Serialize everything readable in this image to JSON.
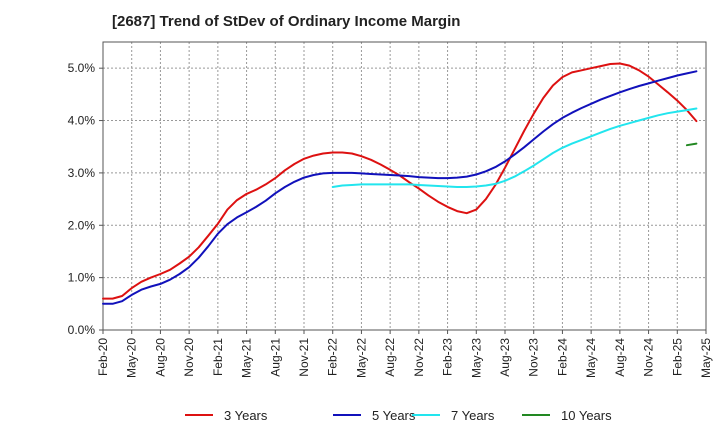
{
  "chart_data": {
    "type": "line",
    "title": "[2687]  Trend of StDev of Ordinary Income Margin",
    "xlabel": "",
    "ylabel": "",
    "x_ticks": [
      "Feb-20",
      "May-20",
      "Aug-20",
      "Nov-20",
      "Feb-21",
      "May-21",
      "Aug-21",
      "Nov-21",
      "Feb-22",
      "May-22",
      "Aug-22",
      "Nov-22",
      "Feb-23",
      "May-23",
      "Aug-23",
      "Nov-23",
      "Feb-24",
      "May-24",
      "Aug-24",
      "Nov-24",
      "Feb-25",
      "May-25"
    ],
    "y_ticks": [
      "0.0%",
      "1.0%",
      "2.0%",
      "3.0%",
      "4.0%",
      "5.0%"
    ],
    "ylim": [
      0,
      5.5
    ],
    "grid": true,
    "legend_position": "bottom",
    "series": [
      {
        "name": "3 Years",
        "color": "#dd1111",
        "values": [
          [
            0,
            0.6
          ],
          [
            1,
            0.6
          ],
          [
            2,
            0.65
          ],
          [
            3,
            0.8
          ],
          [
            4,
            0.92
          ],
          [
            5,
            1.0
          ],
          [
            6,
            1.07
          ],
          [
            7,
            1.15
          ],
          [
            8,
            1.27
          ],
          [
            9,
            1.4
          ],
          [
            10,
            1.58
          ],
          [
            11,
            1.8
          ],
          [
            12,
            2.03
          ],
          [
            13,
            2.3
          ],
          [
            14,
            2.48
          ],
          [
            15,
            2.6
          ],
          [
            16,
            2.68
          ],
          [
            17,
            2.78
          ],
          [
            18,
            2.9
          ],
          [
            19,
            3.05
          ],
          [
            20,
            3.17
          ],
          [
            21,
            3.27
          ],
          [
            22,
            3.33
          ],
          [
            23,
            3.37
          ],
          [
            24,
            3.39
          ],
          [
            25,
            3.39
          ],
          [
            26,
            3.37
          ],
          [
            27,
            3.32
          ],
          [
            28,
            3.25
          ],
          [
            29,
            3.16
          ],
          [
            30,
            3.06
          ],
          [
            31,
            2.95
          ],
          [
            32,
            2.82
          ],
          [
            33,
            2.7
          ],
          [
            34,
            2.57
          ],
          [
            35,
            2.45
          ],
          [
            36,
            2.35
          ],
          [
            37,
            2.27
          ],
          [
            38,
            2.23
          ],
          [
            39,
            2.3
          ],
          [
            40,
            2.5
          ],
          [
            41,
            2.77
          ],
          [
            42,
            3.1
          ],
          [
            43,
            3.45
          ],
          [
            44,
            3.8
          ],
          [
            45,
            4.13
          ],
          [
            46,
            4.43
          ],
          [
            47,
            4.67
          ],
          [
            48,
            4.83
          ],
          [
            49,
            4.92
          ],
          [
            50,
            4.96
          ],
          [
            51,
            5.0
          ],
          [
            52,
            5.04
          ],
          [
            53,
            5.08
          ],
          [
            54,
            5.09
          ],
          [
            55,
            5.05
          ],
          [
            56,
            4.96
          ],
          [
            57,
            4.84
          ],
          [
            58,
            4.69
          ],
          [
            59,
            4.54
          ],
          [
            60,
            4.38
          ],
          [
            61,
            4.2
          ],
          [
            62,
            3.99
          ]
        ]
      },
      {
        "name": "5 Years",
        "color": "#1111bb",
        "values": [
          [
            0,
            0.5
          ],
          [
            1,
            0.5
          ],
          [
            2,
            0.55
          ],
          [
            3,
            0.67
          ],
          [
            4,
            0.77
          ],
          [
            5,
            0.83
          ],
          [
            6,
            0.88
          ],
          [
            7,
            0.96
          ],
          [
            8,
            1.07
          ],
          [
            9,
            1.2
          ],
          [
            10,
            1.38
          ],
          [
            11,
            1.6
          ],
          [
            12,
            1.84
          ],
          [
            13,
            2.02
          ],
          [
            14,
            2.15
          ],
          [
            15,
            2.25
          ],
          [
            16,
            2.35
          ],
          [
            17,
            2.47
          ],
          [
            18,
            2.61
          ],
          [
            19,
            2.73
          ],
          [
            20,
            2.83
          ],
          [
            21,
            2.91
          ],
          [
            22,
            2.96
          ],
          [
            23,
            2.99
          ],
          [
            24,
            3.0
          ],
          [
            25,
            3.0
          ],
          [
            26,
            3.0
          ],
          [
            27,
            2.99
          ],
          [
            28,
            2.98
          ],
          [
            29,
            2.97
          ],
          [
            30,
            2.96
          ],
          [
            31,
            2.95
          ],
          [
            32,
            2.94
          ],
          [
            33,
            2.92
          ],
          [
            34,
            2.91
          ],
          [
            35,
            2.9
          ],
          [
            36,
            2.9
          ],
          [
            37,
            2.91
          ],
          [
            38,
            2.93
          ],
          [
            39,
            2.97
          ],
          [
            40,
            3.03
          ],
          [
            41,
            3.11
          ],
          [
            42,
            3.22
          ],
          [
            43,
            3.35
          ],
          [
            44,
            3.49
          ],
          [
            45,
            3.64
          ],
          [
            46,
            3.79
          ],
          [
            47,
            3.93
          ],
          [
            48,
            4.05
          ],
          [
            49,
            4.15
          ],
          [
            50,
            4.24
          ],
          [
            51,
            4.32
          ],
          [
            52,
            4.4
          ],
          [
            53,
            4.47
          ],
          [
            54,
            4.54
          ],
          [
            55,
            4.6
          ],
          [
            56,
            4.66
          ],
          [
            57,
            4.71
          ],
          [
            58,
            4.76
          ],
          [
            59,
            4.81
          ],
          [
            60,
            4.86
          ],
          [
            61,
            4.9
          ],
          [
            62,
            4.94
          ]
        ]
      },
      {
        "name": "7 Years",
        "color": "#22e5ee",
        "values": [
          [
            24,
            2.73
          ],
          [
            25,
            2.76
          ],
          [
            26,
            2.77
          ],
          [
            27,
            2.78
          ],
          [
            28,
            2.78
          ],
          [
            29,
            2.78
          ],
          [
            30,
            2.78
          ],
          [
            31,
            2.78
          ],
          [
            32,
            2.78
          ],
          [
            33,
            2.77
          ],
          [
            34,
            2.76
          ],
          [
            35,
            2.75
          ],
          [
            36,
            2.74
          ],
          [
            37,
            2.73
          ],
          [
            38,
            2.73
          ],
          [
            39,
            2.74
          ],
          [
            40,
            2.76
          ],
          [
            41,
            2.79
          ],
          [
            42,
            2.85
          ],
          [
            43,
            2.93
          ],
          [
            44,
            3.03
          ],
          [
            45,
            3.14
          ],
          [
            46,
            3.26
          ],
          [
            47,
            3.38
          ],
          [
            48,
            3.48
          ],
          [
            49,
            3.56
          ],
          [
            50,
            3.63
          ],
          [
            51,
            3.7
          ],
          [
            52,
            3.77
          ],
          [
            53,
            3.84
          ],
          [
            54,
            3.9
          ],
          [
            55,
            3.95
          ],
          [
            56,
            4.0
          ],
          [
            57,
            4.05
          ],
          [
            58,
            4.1
          ],
          [
            59,
            4.14
          ],
          [
            60,
            4.17
          ],
          [
            61,
            4.2
          ],
          [
            62,
            4.23
          ]
        ]
      },
      {
        "name": "10 Years",
        "color": "#228822",
        "values": [
          [
            61,
            3.53
          ],
          [
            62,
            3.56
          ]
        ]
      }
    ]
  }
}
